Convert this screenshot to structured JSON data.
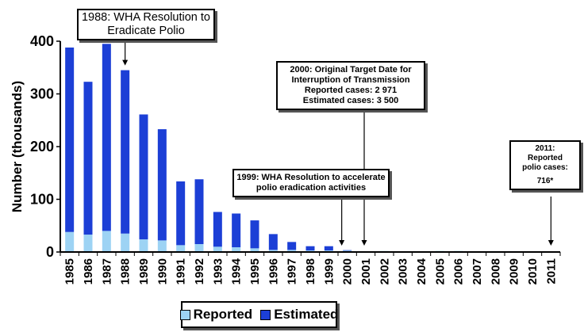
{
  "chart_data": {
    "type": "bar",
    "stacked": true,
    "title": "",
    "xlabel": "",
    "ylabel": "Number (thousands)",
    "ylim": [
      0,
      400
    ],
    "yticks": [
      0,
      100,
      200,
      300,
      400
    ],
    "grid": false,
    "legend_position": "bottom",
    "categories": [
      "1985",
      "1986",
      "1987",
      "1988",
      "1989",
      "1990",
      "1991",
      "1992",
      "1993",
      "1994",
      "1995",
      "1996",
      "1997",
      "1998",
      "1999",
      "2000",
      "2001",
      "2002",
      "2003",
      "2004",
      "2005",
      "2006",
      "2007",
      "2008",
      "2009",
      "2010",
      "2011"
    ],
    "series": [
      {
        "name": "Reported",
        "color": "#9dd3f4",
        "values": [
          38,
          33,
          40,
          35,
          24,
          22,
          13,
          15,
          10,
          9,
          7,
          4,
          4,
          3,
          3,
          2.971,
          0.5,
          1.9,
          0.8,
          1.3,
          2.0,
          2.0,
          1.3,
          1.7,
          1.6,
          1.4,
          0.716
        ]
      },
      {
        "name": "Estimated",
        "color": "#1c3fd6",
        "values": [
          350,
          290,
          355,
          310,
          237,
          211,
          121,
          123,
          66,
          64,
          53,
          30,
          15,
          8,
          8,
          0.529,
          0,
          0,
          0,
          0,
          0,
          0,
          0,
          0,
          0,
          0,
          0
        ]
      }
    ],
    "annotations": [
      {
        "id": "a1988",
        "target": "1988",
        "lines": [
          "1988: WHA Resolution to",
          "Eradicate Polio"
        ]
      },
      {
        "id": "a2000",
        "target": "2001",
        "lines": [
          "2000: Original Target Date for",
          "Interruption of Transmission",
          "Reported cases:   2 971",
          "Estimated cases: 3 500"
        ]
      },
      {
        "id": "a1999",
        "target": "2000",
        "lines": [
          "1999: WHA Resolution to accelerate",
          "polio eradication activities"
        ]
      },
      {
        "id": "a2011",
        "target": "2011",
        "lines": [
          "2011:",
          "Reported",
          "polio cases:",
          "716*"
        ]
      }
    ]
  }
}
